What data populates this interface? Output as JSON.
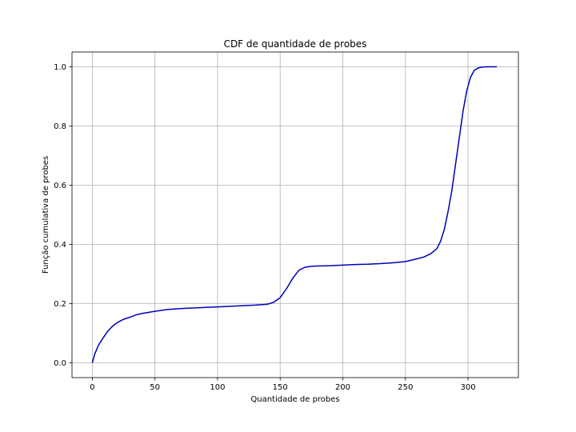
{
  "chart_data": {
    "type": "line",
    "title": "CDF de quantidade de probes",
    "xlabel": "Quantidade de probes",
    "ylabel": "Função cumulativa de probes",
    "xlim": [
      -16.2,
      340.2
    ],
    "ylim": [
      -0.05,
      1.05
    ],
    "xticks": [
      0,
      50,
      100,
      150,
      200,
      250,
      300
    ],
    "yticks": [
      0.0,
      0.2,
      0.4,
      0.6,
      0.8,
      1.0
    ],
    "xtick_labels": [
      "0",
      "50",
      "100",
      "150",
      "200",
      "250",
      "300"
    ],
    "ytick_labels": [
      "0.0",
      "0.2",
      "0.4",
      "0.6",
      "0.8",
      "1.0"
    ],
    "grid": true,
    "line_color": "#0000bb",
    "series": [
      {
        "x": [
          0,
          2,
          5,
          8,
          12,
          16,
          20,
          25,
          30,
          35,
          40,
          50,
          60,
          70,
          80,
          90,
          100,
          110,
          120,
          130,
          140,
          145,
          150,
          155,
          160,
          165,
          170,
          175,
          180,
          190,
          200,
          210,
          220,
          230,
          240,
          250,
          260,
          265,
          270,
          275,
          278,
          281,
          284,
          287,
          290,
          293,
          296,
          299,
          302,
          305,
          308,
          311,
          315,
          320,
          323
        ],
        "y": [
          0.0,
          0.03,
          0.06,
          0.08,
          0.105,
          0.123,
          0.136,
          0.147,
          0.154,
          0.162,
          0.167,
          0.174,
          0.18,
          0.183,
          0.185,
          0.187,
          0.189,
          0.191,
          0.193,
          0.195,
          0.198,
          0.205,
          0.22,
          0.25,
          0.285,
          0.313,
          0.323,
          0.326,
          0.327,
          0.328,
          0.33,
          0.332,
          0.333,
          0.335,
          0.338,
          0.342,
          0.352,
          0.358,
          0.368,
          0.385,
          0.41,
          0.45,
          0.51,
          0.58,
          0.67,
          0.76,
          0.85,
          0.92,
          0.965,
          0.988,
          0.996,
          0.999,
          1.0,
          1.0,
          1.0
        ]
      }
    ]
  }
}
